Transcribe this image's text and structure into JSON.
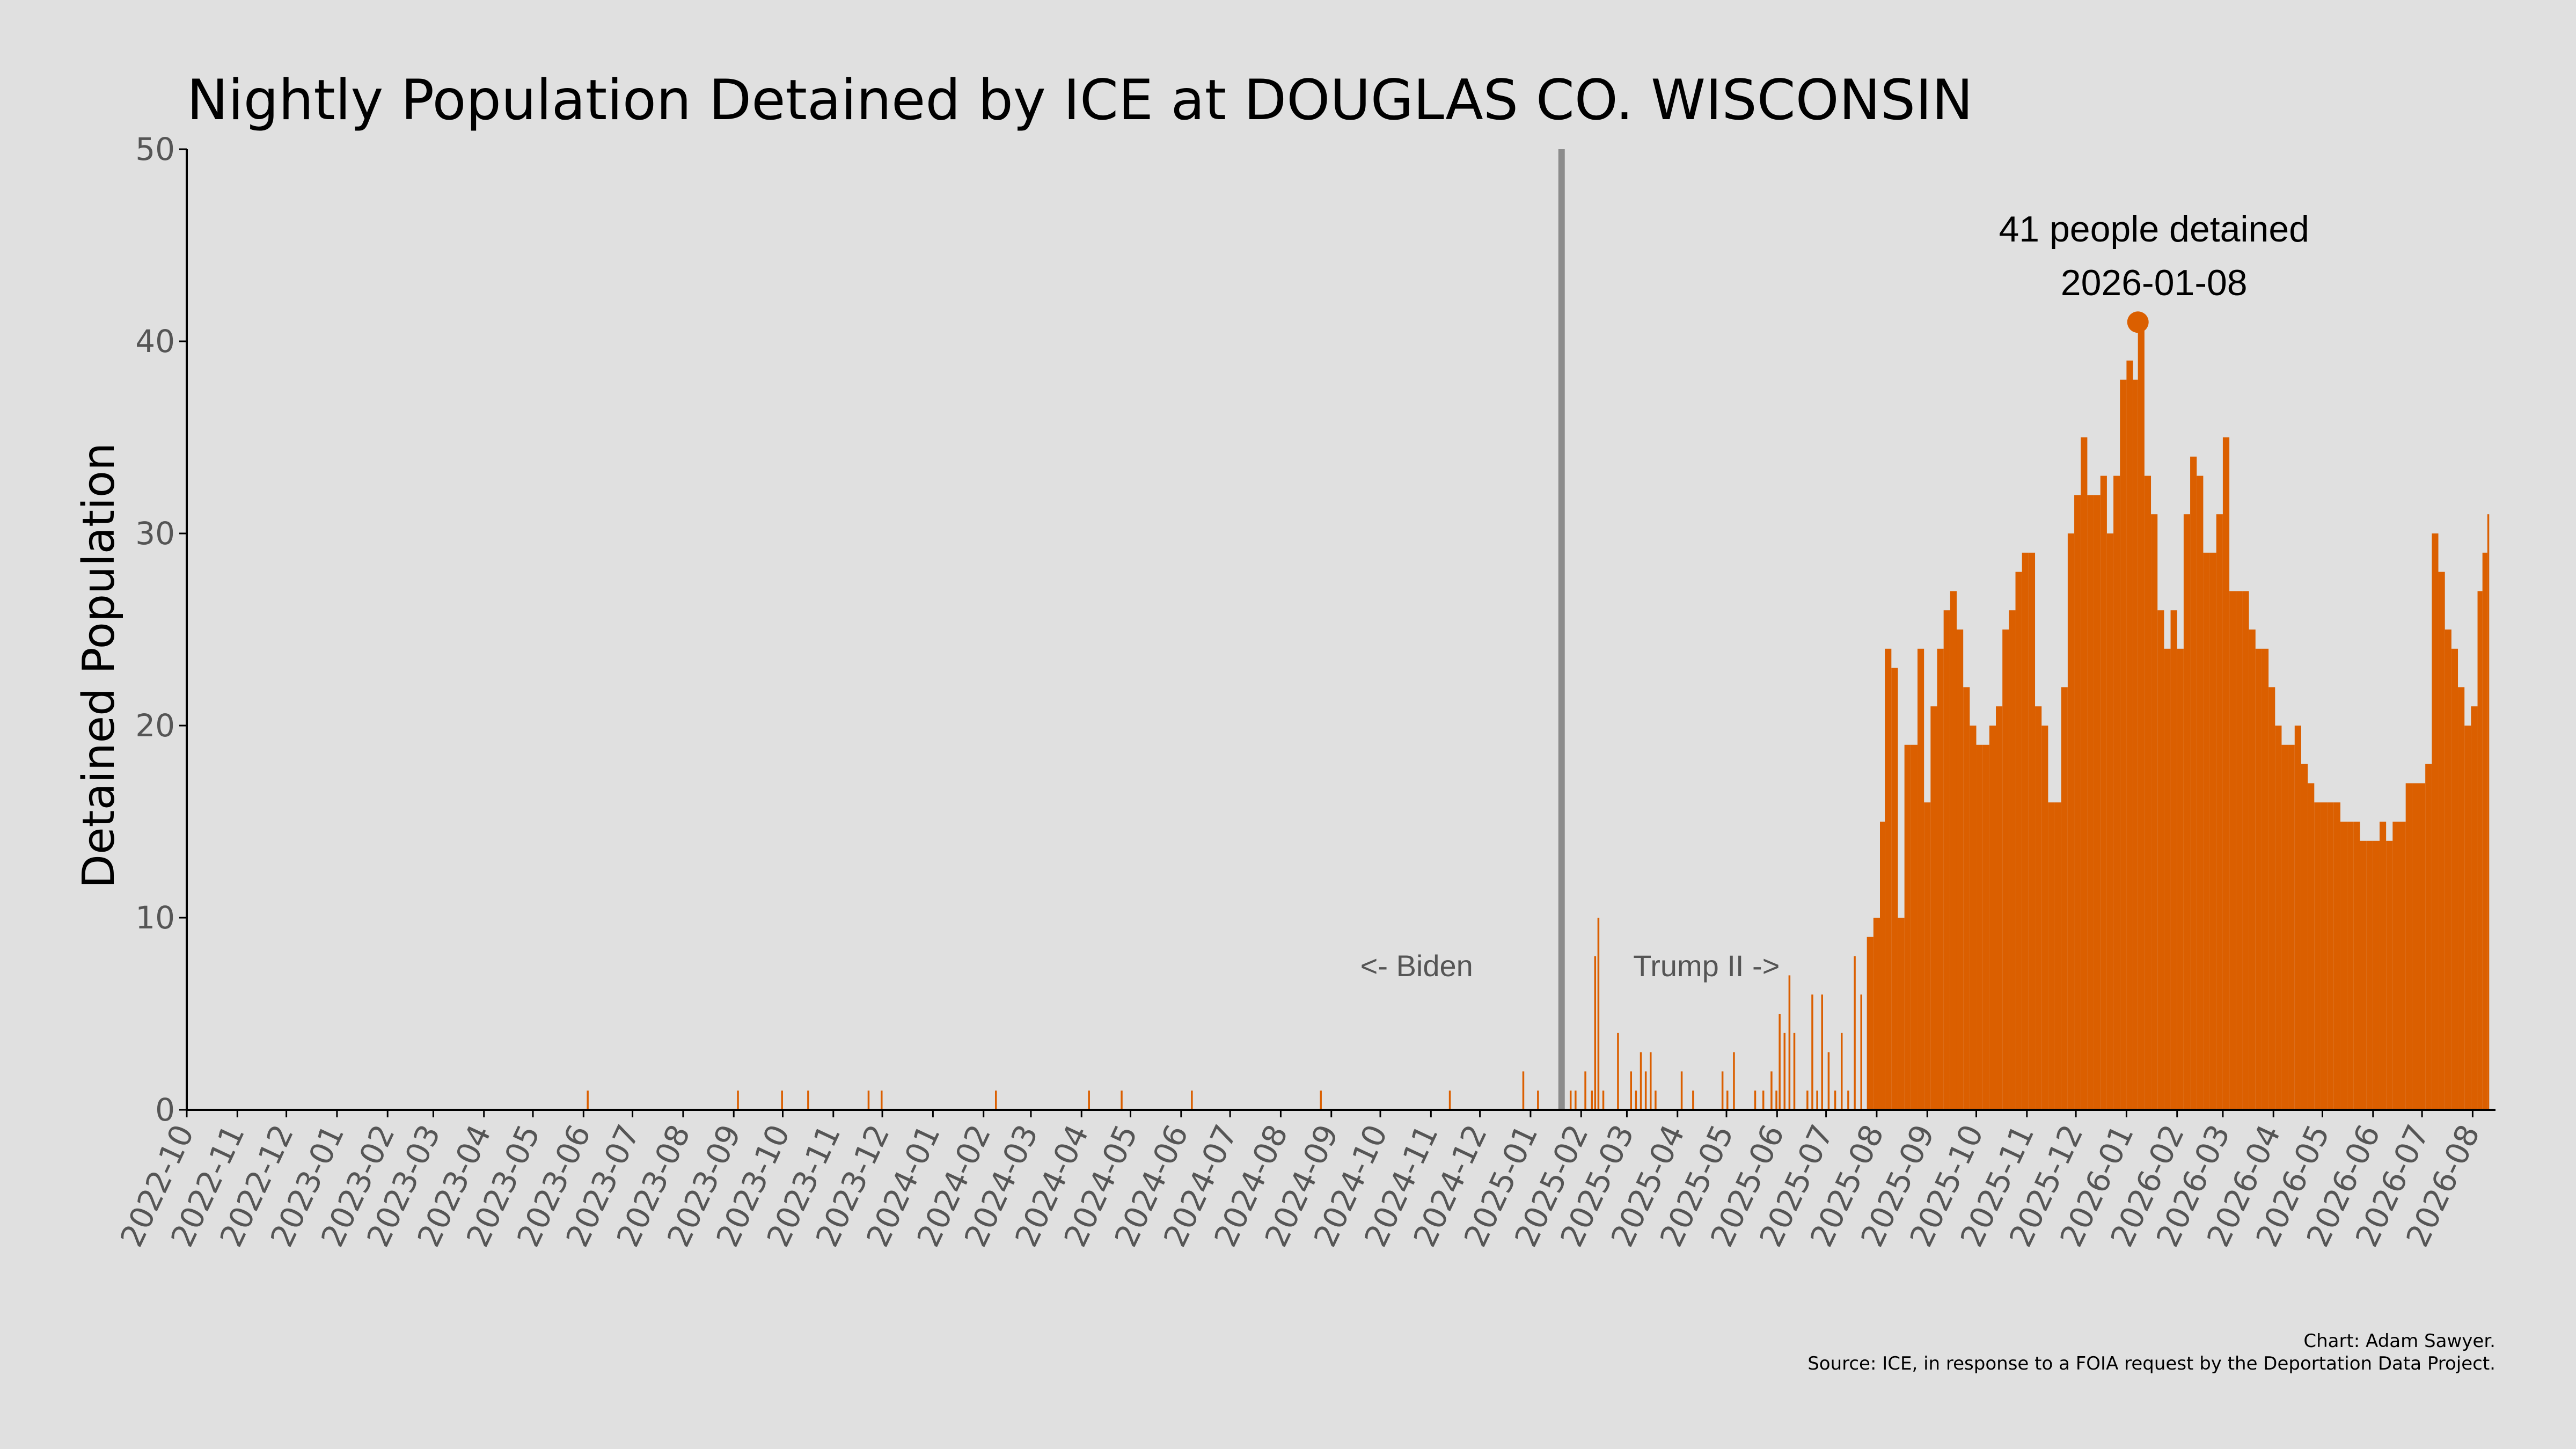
{
  "chart_data": {
    "type": "bar",
    "title": "Nightly Population Detained by ICE at DOUGLAS CO. WISCONSIN",
    "ylabel": "Detained Population",
    "xlabel": "",
    "ylim": [
      0,
      50
    ],
    "yticks": [
      0,
      10,
      20,
      30,
      40,
      50
    ],
    "xlim": [
      "2022-10-01",
      "2026-08-15"
    ],
    "xticks": [
      "2022-10",
      "2022-11",
      "2022-12",
      "2023-01",
      "2023-02",
      "2023-03",
      "2023-04",
      "2023-05",
      "2023-06",
      "2023-07",
      "2023-08",
      "2023-09",
      "2023-10",
      "2023-11",
      "2023-12",
      "2024-01",
      "2024-02",
      "2024-03",
      "2024-04",
      "2024-05",
      "2024-06",
      "2024-07",
      "2024-08",
      "2024-09",
      "2024-10",
      "2024-11",
      "2024-12",
      "2025-01",
      "2025-02",
      "2025-03",
      "2025-04",
      "2025-05",
      "2025-06",
      "2025-07",
      "2025-08",
      "2025-09",
      "2025-10",
      "2025-11",
      "2025-12",
      "2026-01",
      "2026-02",
      "2026-03",
      "2026-04",
      "2026-05",
      "2026-06",
      "2026-07",
      "2026-08"
    ],
    "grid": false,
    "bar_color": "#db5f00",
    "divider": {
      "date": "2025-01-20",
      "color": "#8c8c8c"
    },
    "era_labels": {
      "left": "<- Biden",
      "right": "Trump II ->",
      "y": 5
    },
    "peak": {
      "date": "2026-01-08",
      "value": 41,
      "label_line1": "41 people detained",
      "label_line2": "2026-01-08"
    },
    "series": [
      {
        "points": [
          [
            "2023-06-03",
            1
          ],
          [
            "2023-09-03",
            1
          ],
          [
            "2023-09-30",
            1
          ],
          [
            "2023-10-16",
            1
          ],
          [
            "2023-11-22",
            1
          ],
          [
            "2023-11-30",
            1
          ],
          [
            "2024-02-08",
            1
          ],
          [
            "2024-04-05",
            1
          ],
          [
            "2024-04-25",
            1
          ],
          [
            "2024-06-07",
            1
          ],
          [
            "2024-08-25",
            1
          ],
          [
            "2024-11-12",
            1
          ],
          [
            "2024-12-27",
            2
          ],
          [
            "2025-01-05",
            1
          ],
          [
            "2025-01-25",
            1
          ],
          [
            "2025-01-28",
            1
          ],
          [
            "2025-02-03",
            2
          ],
          [
            "2025-02-07",
            1
          ],
          [
            "2025-02-09",
            8
          ],
          [
            "2025-02-11",
            10
          ],
          [
            "2025-02-14",
            1
          ],
          [
            "2025-02-23",
            4
          ],
          [
            "2025-03-03",
            2
          ],
          [
            "2025-03-06",
            1
          ],
          [
            "2025-03-09",
            3
          ],
          [
            "2025-03-12",
            2
          ],
          [
            "2025-03-15",
            3
          ],
          [
            "2025-03-18",
            1
          ],
          [
            "2025-04-03",
            2
          ],
          [
            "2025-04-10",
            1
          ],
          [
            "2025-04-28",
            2
          ],
          [
            "2025-05-01",
            1
          ],
          [
            "2025-05-05",
            3
          ],
          [
            "2025-05-18",
            1
          ],
          [
            "2025-05-23",
            1
          ],
          [
            "2025-05-28",
            2
          ],
          [
            "2025-05-31",
            1
          ],
          [
            "2025-06-02",
            5
          ],
          [
            "2025-06-05",
            4
          ],
          [
            "2025-06-08",
            7
          ],
          [
            "2025-06-11",
            4
          ],
          [
            "2025-06-19",
            1
          ],
          [
            "2025-06-22",
            6
          ],
          [
            "2025-06-25",
            1
          ],
          [
            "2025-06-28",
            6
          ],
          [
            "2025-07-02",
            3
          ],
          [
            "2025-07-06",
            1
          ],
          [
            "2025-07-10",
            4
          ],
          [
            "2025-07-14",
            1
          ],
          [
            "2025-07-18",
            8
          ],
          [
            "2025-07-22",
            6
          ],
          [
            "2025-07-26",
            9
          ],
          [
            "2025-07-30",
            10
          ],
          [
            "2025-08-03",
            15
          ],
          [
            "2025-08-06",
            24
          ],
          [
            "2025-08-10",
            23
          ],
          [
            "2025-08-14",
            10
          ],
          [
            "2025-08-18",
            19
          ],
          [
            "2025-08-22",
            19
          ],
          [
            "2025-08-26",
            24
          ],
          [
            "2025-08-30",
            16
          ],
          [
            "2025-09-03",
            21
          ],
          [
            "2025-09-07",
            24
          ],
          [
            "2025-09-11",
            26
          ],
          [
            "2025-09-15",
            27
          ],
          [
            "2025-09-19",
            25
          ],
          [
            "2025-09-23",
            22
          ],
          [
            "2025-09-27",
            20
          ],
          [
            "2025-10-01",
            19
          ],
          [
            "2025-10-05",
            19
          ],
          [
            "2025-10-09",
            20
          ],
          [
            "2025-10-13",
            21
          ],
          [
            "2025-10-17",
            25
          ],
          [
            "2025-10-21",
            26
          ],
          [
            "2025-10-25",
            28
          ],
          [
            "2025-10-29",
            29
          ],
          [
            "2025-11-02",
            29
          ],
          [
            "2025-11-06",
            21
          ],
          [
            "2025-11-10",
            20
          ],
          [
            "2025-11-14",
            16
          ],
          [
            "2025-11-18",
            16
          ],
          [
            "2025-11-22",
            22
          ],
          [
            "2025-11-26",
            30
          ],
          [
            "2025-11-30",
            32
          ],
          [
            "2025-12-04",
            35
          ],
          [
            "2025-12-08",
            32
          ],
          [
            "2025-12-12",
            32
          ],
          [
            "2025-12-16",
            33
          ],
          [
            "2025-12-20",
            30
          ],
          [
            "2025-12-24",
            33
          ],
          [
            "2025-12-28",
            38
          ],
          [
            "2026-01-01",
            39
          ],
          [
            "2026-01-05",
            38
          ],
          [
            "2026-01-08",
            41
          ],
          [
            "2026-01-12",
            33
          ],
          [
            "2026-01-16",
            31
          ],
          [
            "2026-01-20",
            26
          ],
          [
            "2026-01-24",
            24
          ],
          [
            "2026-01-28",
            26
          ],
          [
            "2026-02-01",
            24
          ],
          [
            "2026-02-05",
            31
          ],
          [
            "2026-02-09",
            34
          ],
          [
            "2026-02-13",
            33
          ],
          [
            "2026-02-17",
            29
          ],
          [
            "2026-02-21",
            29
          ],
          [
            "2026-02-25",
            31
          ],
          [
            "2026-03-01",
            35
          ],
          [
            "2026-03-05",
            27
          ],
          [
            "2026-03-09",
            27
          ],
          [
            "2026-03-13",
            27
          ],
          [
            "2026-03-17",
            25
          ],
          [
            "2026-03-21",
            24
          ],
          [
            "2026-03-25",
            24
          ],
          [
            "2026-03-29",
            22
          ],
          [
            "2026-04-02",
            20
          ],
          [
            "2026-04-06",
            19
          ],
          [
            "2026-04-10",
            19
          ],
          [
            "2026-04-14",
            20
          ],
          [
            "2026-04-18",
            18
          ],
          [
            "2026-04-22",
            17
          ],
          [
            "2026-04-26",
            16
          ],
          [
            "2026-04-30",
            16
          ],
          [
            "2026-05-04",
            16
          ],
          [
            "2026-05-08",
            16
          ],
          [
            "2026-05-12",
            15
          ],
          [
            "2026-05-16",
            15
          ],
          [
            "2026-05-20",
            15
          ],
          [
            "2026-05-24",
            14
          ],
          [
            "2026-05-28",
            14
          ],
          [
            "2026-06-01",
            14
          ],
          [
            "2026-06-05",
            15
          ],
          [
            "2026-06-09",
            14
          ],
          [
            "2026-06-13",
            15
          ],
          [
            "2026-06-17",
            15
          ],
          [
            "2026-06-21",
            17
          ],
          [
            "2026-06-25",
            17
          ],
          [
            "2026-06-29",
            17
          ],
          [
            "2026-07-03",
            18
          ],
          [
            "2026-07-07",
            30
          ],
          [
            "2026-07-11",
            28
          ],
          [
            "2026-07-15",
            25
          ],
          [
            "2026-07-19",
            24
          ],
          [
            "2026-07-23",
            22
          ],
          [
            "2026-07-27",
            20
          ],
          [
            "2026-07-31",
            21
          ],
          [
            "2026-08-04",
            27
          ],
          [
            "2026-08-07",
            29
          ],
          [
            "2026-08-10",
            31
          ]
        ]
      }
    ],
    "caption": {
      "line1": "Chart: Adam Sawyer.",
      "line2": "Source: ICE, in response to a FOIA request by the Deportation Data Project."
    }
  }
}
